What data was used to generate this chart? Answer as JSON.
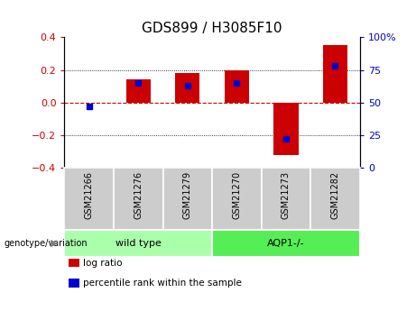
{
  "title": "GDS899 / H3085F10",
  "samples": [
    "GSM21266",
    "GSM21276",
    "GSM21279",
    "GSM21270",
    "GSM21273",
    "GSM21282"
  ],
  "log_ratios": [
    0.0,
    0.14,
    0.18,
    0.2,
    -0.32,
    0.35
  ],
  "percentile_ranks": [
    47,
    65,
    63,
    65,
    22,
    78
  ],
  "bar_width": 0.5,
  "ylim_left": [
    -0.4,
    0.4
  ],
  "ylim_right": [
    0,
    100
  ],
  "yticks_left": [
    -0.4,
    -0.2,
    0.0,
    0.2,
    0.4
  ],
  "yticks_right": [
    0,
    25,
    50,
    75,
    100
  ],
  "groups": [
    {
      "label": "wild type",
      "indices": [
        0,
        1,
        2
      ],
      "color": "#aaffaa"
    },
    {
      "label": "AQP1-/-",
      "indices": [
        3,
        4,
        5
      ],
      "color": "#55ee55"
    }
  ],
  "red_color": "#cc0000",
  "blue_color": "#0000cc",
  "sample_box_color": "#cccccc",
  "genotype_label": "genotype/variation",
  "legend_items": [
    {
      "label": "log ratio",
      "color": "#cc0000"
    },
    {
      "label": "percentile rank within the sample",
      "color": "#0000cc"
    }
  ],
  "title_fontsize": 11,
  "tick_fontsize": 8,
  "label_fontsize": 7.5
}
